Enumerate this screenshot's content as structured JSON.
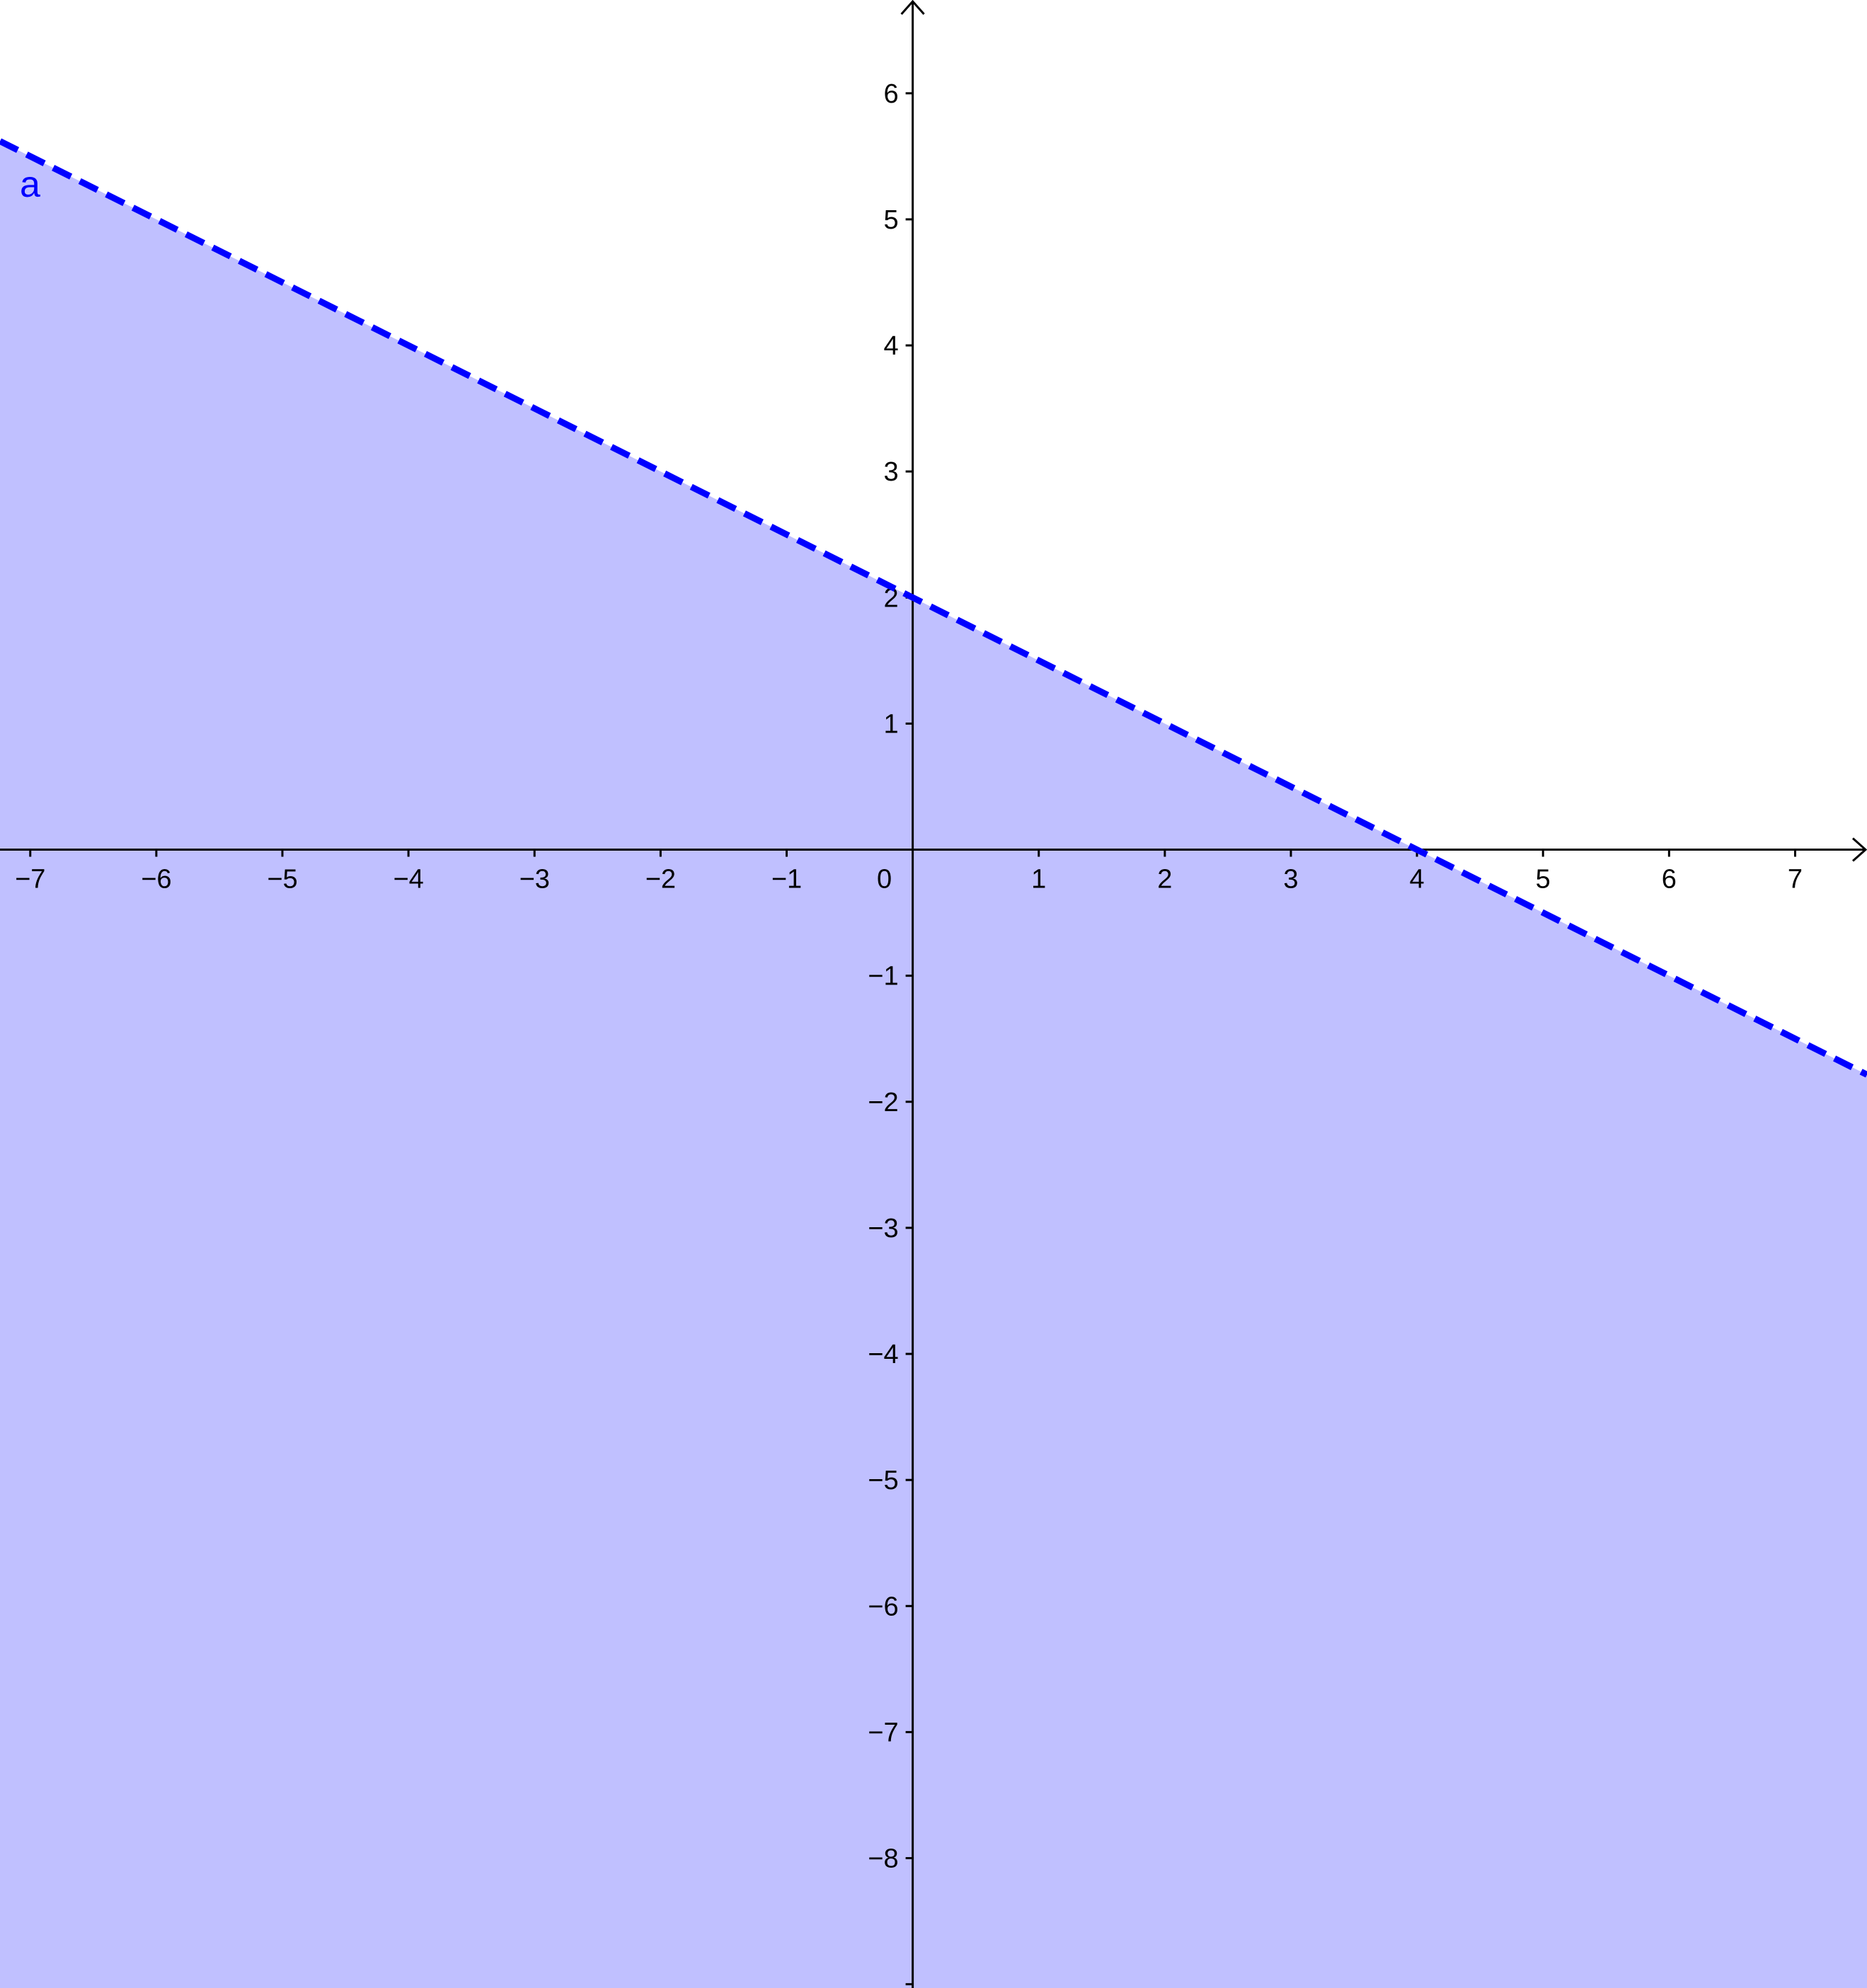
{
  "chart_data": {
    "type": "area",
    "title": "",
    "xlabel": "",
    "ylabel": "",
    "xlim": [
      -7.24,
      7.57
    ],
    "ylim": [
      -9.03,
      6.74
    ],
    "grid": false,
    "x_ticks": [
      "−7",
      "−6",
      "−5",
      "−4",
      "−3",
      "−2",
      "−1",
      "1",
      "2",
      "3",
      "4",
      "5",
      "6",
      "7"
    ],
    "x_tick_values": [
      -7,
      -6,
      -5,
      -4,
      -3,
      -2,
      -1,
      1,
      2,
      3,
      4,
      5,
      6,
      7
    ],
    "y_ticks": [
      "6",
      "5",
      "4",
      "3",
      "2",
      "1",
      "−1",
      "−2",
      "−3",
      "−4",
      "−5",
      "−6",
      "−7",
      "−8"
    ],
    "y_tick_values": [
      6,
      5,
      4,
      3,
      2,
      1,
      -1,
      -2,
      -3,
      -4,
      -5,
      -6,
      -7,
      -8
    ],
    "origin_label": "0",
    "series": [
      {
        "name": "a",
        "kind": "inequality-boundary",
        "slope": -0.5,
        "intercept": 2,
        "points": [
          [
            -7.24,
            5.62
          ],
          [
            0,
            2
          ],
          [
            4,
            0
          ],
          [
            7.57,
            -1.785
          ]
        ],
        "line_style": "dashed",
        "shaded": "below",
        "line_color": "#0000ff",
        "fill_color": "#c0c0ff"
      }
    ]
  }
}
